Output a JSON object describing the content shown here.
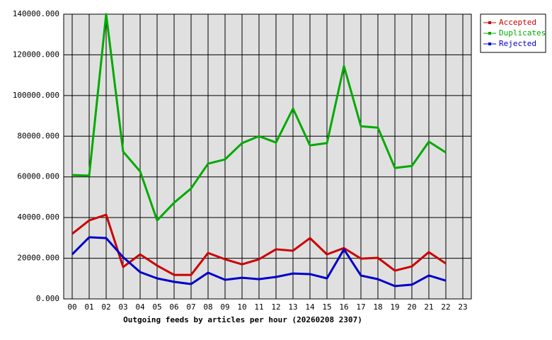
{
  "chart_data": {
    "type": "line",
    "title": "Outgoing feeds by articles per hour (20260208 2307)",
    "categories": [
      "00",
      "01",
      "02",
      "03",
      "04",
      "05",
      "06",
      "07",
      "08",
      "09",
      "10",
      "11",
      "12",
      "13",
      "14",
      "15",
      "16",
      "17",
      "18",
      "19",
      "20",
      "21",
      "22",
      "23"
    ],
    "series": [
      {
        "name": "Accepted",
        "color": "#cc0000",
        "values": [
          32000,
          38600,
          41400,
          15700,
          21900,
          16400,
          11800,
          11800,
          22600,
          19500,
          17000,
          19500,
          24400,
          23700,
          29900,
          21900,
          25000,
          19800,
          20200,
          13900,
          16000,
          23000,
          17400,
          null
        ]
      },
      {
        "name": "Duplicates",
        "color": "#00aa00",
        "values": [
          60900,
          60600,
          140000,
          72400,
          62700,
          38600,
          47300,
          54300,
          66500,
          68600,
          76600,
          80000,
          76900,
          93600,
          75500,
          76600,
          114500,
          84900,
          84200,
          64400,
          65400,
          77300,
          72000,
          null
        ]
      },
      {
        "name": "Rejected",
        "color": "#0000cc",
        "values": [
          21900,
          30300,
          29900,
          20500,
          13200,
          10100,
          8400,
          7300,
          12900,
          9400,
          10400,
          9700,
          10800,
          12500,
          12200,
          10100,
          24400,
          11500,
          9700,
          6300,
          7000,
          11500,
          9000,
          null
        ]
      }
    ],
    "ylim": [
      0,
      140000
    ],
    "yticks": [
      {
        "value": 0,
        "label": "0.000"
      },
      {
        "value": 20000,
        "label": "20000.000"
      },
      {
        "value": 40000,
        "label": "40000.000"
      },
      {
        "value": 60000,
        "label": "60000.000"
      },
      {
        "value": 80000,
        "label": "80000.000"
      },
      {
        "value": 100000,
        "label": "100000.000"
      },
      {
        "value": 120000,
        "label": "120000.000"
      },
      {
        "value": 140000,
        "label": "140000.000"
      }
    ],
    "grid": true,
    "legend": "right"
  }
}
